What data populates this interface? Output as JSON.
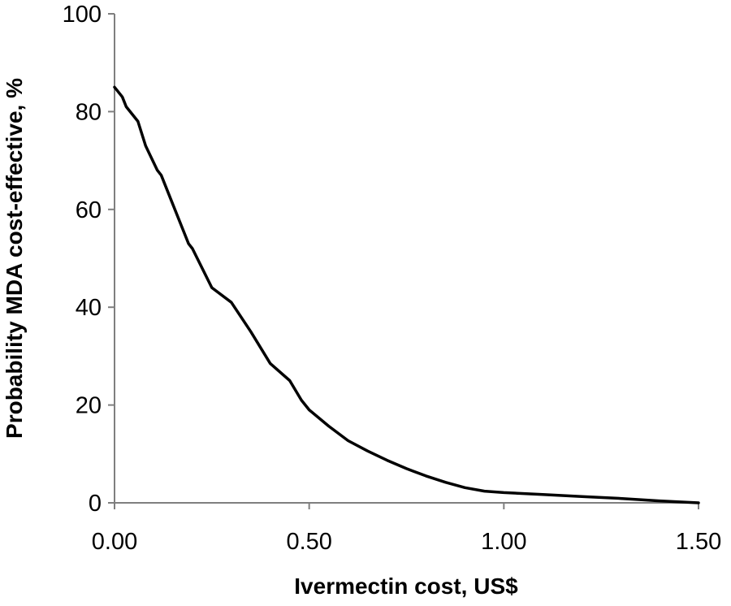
{
  "chart_data": {
    "type": "line",
    "title": "",
    "xlabel": "Ivermectin cost, US$",
    "ylabel": "Probability MDA cost-effective,  %",
    "xlim": [
      0,
      1.5
    ],
    "ylim": [
      0,
      100
    ],
    "x_ticks": [
      0,
      0.5,
      1.0,
      1.5
    ],
    "x_tick_labels": [
      "0.00",
      "0.50",
      "1.00",
      "1.50"
    ],
    "y_ticks": [
      0,
      20,
      40,
      60,
      80,
      100
    ],
    "y_tick_labels": [
      "0",
      "20",
      "40",
      "60",
      "80",
      "100"
    ],
    "grid": false,
    "legend": "none",
    "line_color": "#000000",
    "series": [
      {
        "x": [
          0,
          0.02,
          0.03,
          0.06,
          0.08,
          0.11,
          0.12,
          0.15,
          0.19,
          0.2,
          0.25,
          0.3,
          0.35,
          0.4,
          0.45,
          0.48,
          0.5,
          0.55,
          0.6,
          0.65,
          0.7,
          0.75,
          0.8,
          0.85,
          0.9,
          0.95,
          1.0,
          1.1,
          1.2,
          1.3,
          1.4,
          1.5
        ],
        "y": [
          85,
          83,
          81,
          78,
          73,
          68,
          67,
          61,
          53,
          52,
          44,
          41,
          35,
          28.5,
          25,
          21,
          19,
          15.7,
          12.7,
          10.6,
          8.7,
          7.0,
          5.5,
          4.2,
          3.1,
          2.4,
          2.1,
          1.7,
          1.3,
          0.9,
          0.4,
          0
        ]
      }
    ]
  }
}
